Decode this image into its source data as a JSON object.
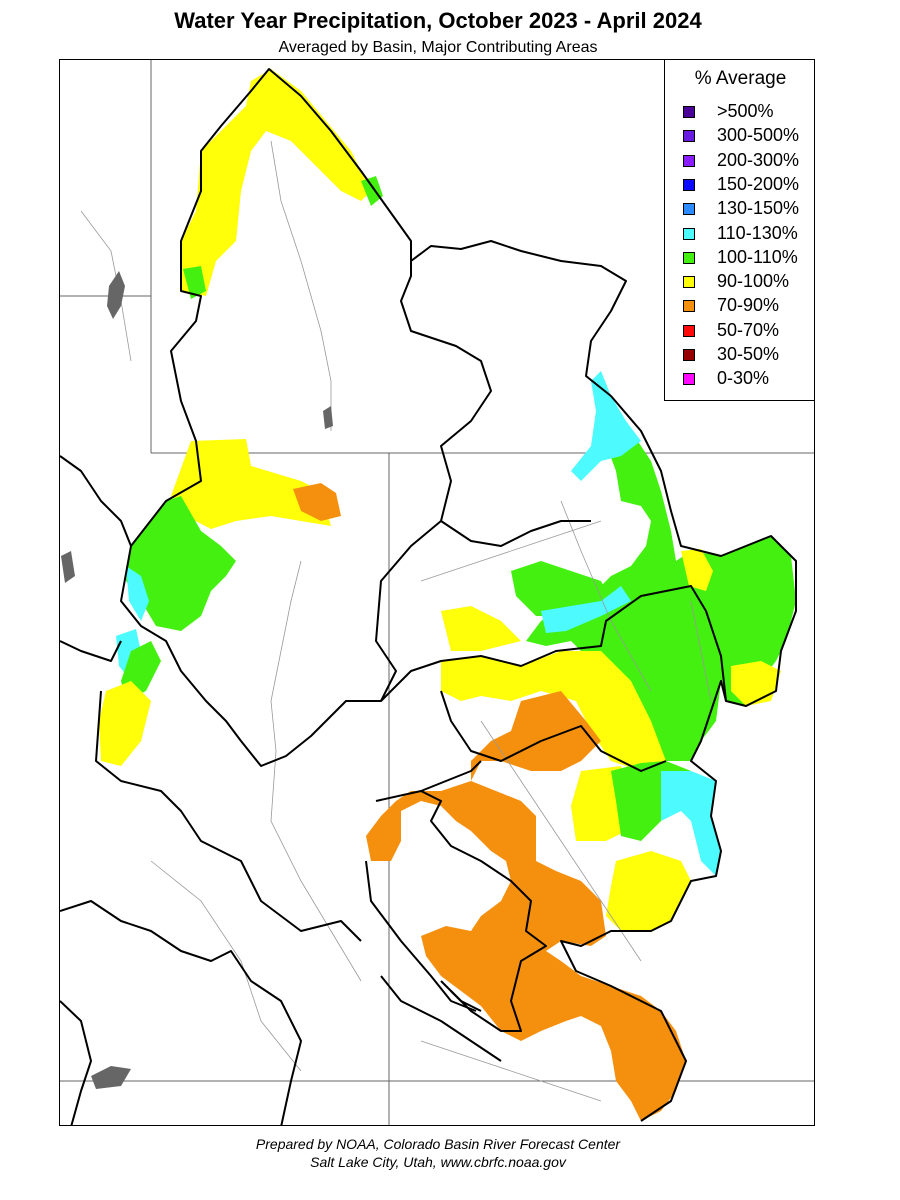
{
  "title": "Water Year Precipitation, October 2023 - April 2024",
  "subtitle": "Averaged by Basin, Major Contributing Areas",
  "legend": {
    "title": "% Average",
    "items": [
      {
        "label": ">500%",
        "color": "#4b0096"
      },
      {
        "label": "300-500%",
        "color": "#6a1be0"
      },
      {
        "label": "200-300%",
        "color": "#8a1eff"
      },
      {
        "label": "150-200%",
        "color": "#0a0aff"
      },
      {
        "label": "130-150%",
        "color": "#2c8cff"
      },
      {
        "label": "110-130%",
        "color": "#4dfbff"
      },
      {
        "label": "100-110%",
        "color": "#43f00f"
      },
      {
        "label": "90-100%",
        "color": "#ffff0a"
      },
      {
        "label": "70-90%",
        "color": "#f5900f"
      },
      {
        "label": "50-70%",
        "color": "#ff0a0a"
      },
      {
        "label": "30-50%",
        "color": "#960000"
      },
      {
        "label": "0-30%",
        "color": "#ff0aff"
      }
    ]
  },
  "credit": {
    "line1": "Prepared by NOAA, Colorado Basin River Forecast Center",
    "line2": "Salt Lake City, Utah, www.cbrfc.noaa.gov"
  }
}
